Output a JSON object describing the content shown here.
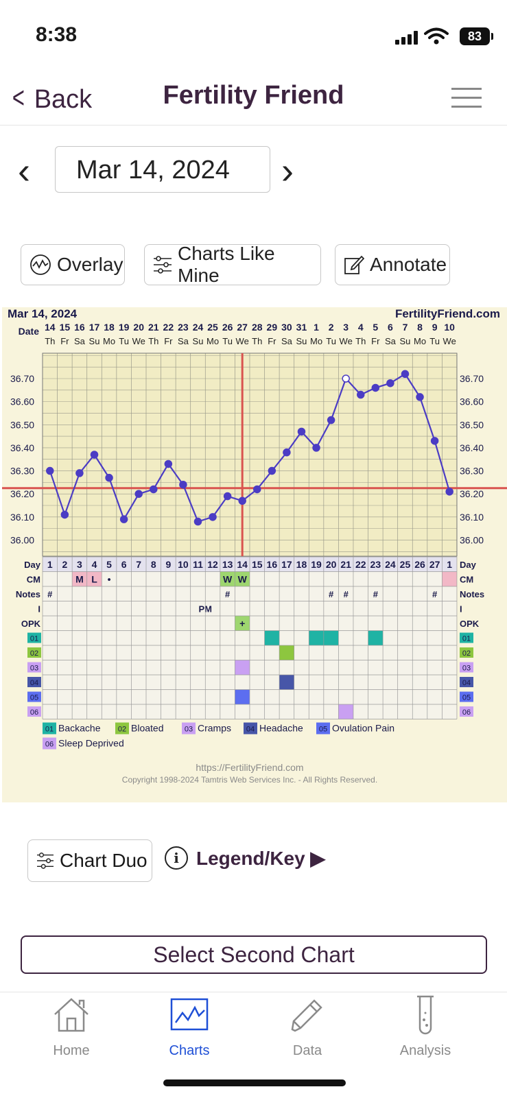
{
  "status": {
    "time": "8:38",
    "battery": "83"
  },
  "nav": {
    "back_label": "Back",
    "title": "Fertility Friend"
  },
  "date_selector": {
    "value": "Mar 14, 2024"
  },
  "toolbar": {
    "overlay_label": "Overlay",
    "charts_like_mine_label": "Charts Like Mine",
    "annotate_label": "Annotate"
  },
  "chart_header": {
    "date": "Mar 14, 2024",
    "brand": "FertilityFriend.com"
  },
  "chart_data": {
    "type": "line",
    "x": [
      "14",
      "15",
      "16",
      "17",
      "18",
      "19",
      "20",
      "21",
      "22",
      "23",
      "24",
      "25",
      "26",
      "27",
      "28",
      "29",
      "30",
      "31",
      "1",
      "2",
      "3",
      "4",
      "5",
      "6",
      "7",
      "8",
      "9",
      "10"
    ],
    "weekdays": [
      "Th",
      "Fr",
      "Sa",
      "Su",
      "Mo",
      "Tu",
      "We",
      "Th",
      "Fr",
      "Sa",
      "Su",
      "Mo",
      "Tu",
      "We",
      "Th",
      "Fr",
      "Sa",
      "Su",
      "Mo",
      "Tu",
      "We",
      "Th",
      "Fr",
      "Sa",
      "Su",
      "Mo",
      "Tu",
      "We"
    ],
    "cycle_days": [
      "1",
      "2",
      "3",
      "4",
      "5",
      "6",
      "7",
      "8",
      "9",
      "10",
      "11",
      "12",
      "13",
      "14",
      "15",
      "16",
      "17",
      "18",
      "19",
      "20",
      "21",
      "22",
      "23",
      "24",
      "25",
      "26",
      "27",
      "1"
    ],
    "series": [
      {
        "values": [
          36.3,
          36.11,
          36.29,
          36.37,
          36.27,
          36.09,
          36.2,
          36.22,
          36.33,
          36.24,
          36.08,
          36.1,
          36.19,
          36.17,
          36.22,
          36.3,
          36.38,
          36.47,
          36.4,
          36.52,
          36.7,
          36.63,
          36.66,
          36.68,
          36.72,
          36.62,
          36.43,
          36.21
        ]
      }
    ],
    "open_points": [
      20
    ],
    "ylim": [
      35.93,
      36.81
    ],
    "y_ticks": [
      "36.70",
      "36.60",
      "36.50",
      "36.40",
      "36.30",
      "36.20",
      "36.10",
      "36.00"
    ],
    "coverline": 36.225,
    "ovulation_day_index": 13,
    "row_labels": [
      "Date",
      "Day",
      "CM",
      "Notes",
      "I",
      "OPK"
    ],
    "cm": [
      {
        "i": 2,
        "v": "M",
        "color": "#f2b8c6"
      },
      {
        "i": 3,
        "v": "L",
        "color": "#f2b8c6"
      },
      {
        "i": 4,
        "v": "•",
        "color": ""
      },
      {
        "i": 12,
        "v": "W",
        "color": "#9ed66f"
      },
      {
        "i": 13,
        "v": "W",
        "color": "#9ed66f"
      },
      {
        "i": 27,
        "v": "",
        "color": "#f2b8c6"
      }
    ],
    "notes": [
      0,
      12,
      19,
      20,
      22,
      26
    ],
    "intercourse": [
      {
        "i": 10,
        "v": "PM"
      }
    ],
    "opk": [
      {
        "i": 13,
        "v": "+"
      }
    ],
    "symptoms": [
      {
        "code": "01",
        "name": "Backache",
        "color": "#1fb3a4",
        "days": [
          15,
          18,
          19,
          22
        ]
      },
      {
        "code": "02",
        "name": "Bloated",
        "color": "#8dc63f",
        "days": [
          16
        ]
      },
      {
        "code": "03",
        "name": "Cramps",
        "color": "#c9a0f2",
        "days": [
          13
        ]
      },
      {
        "code": "04",
        "name": "Headache",
        "color": "#4756a8",
        "days": [
          16
        ]
      },
      {
        "code": "05",
        "name": "Ovulation Pain",
        "color": "#5c6ef0",
        "days": [
          13
        ]
      },
      {
        "code": "06",
        "name": "Sleep Deprived",
        "color": "#c9a0f2",
        "days": [
          20
        ]
      }
    ],
    "line_color": "#4b3cc4",
    "coverline_color": "#d9534f",
    "footer_url": "https://FertilityFriend.com",
    "footer_copyright": "Copyright 1998-2024 Tamtris Web Services Inc. - All Rights Reserved."
  },
  "below_chart": {
    "chart_duo_label": "Chart Duo",
    "legend_label": "Legend/Key ▶",
    "select_second_label": "Select Second Chart"
  },
  "tabbar": {
    "home": "Home",
    "charts": "Charts",
    "data": "Data",
    "analysis": "Analysis",
    "active_color": "#1e4fd6"
  }
}
